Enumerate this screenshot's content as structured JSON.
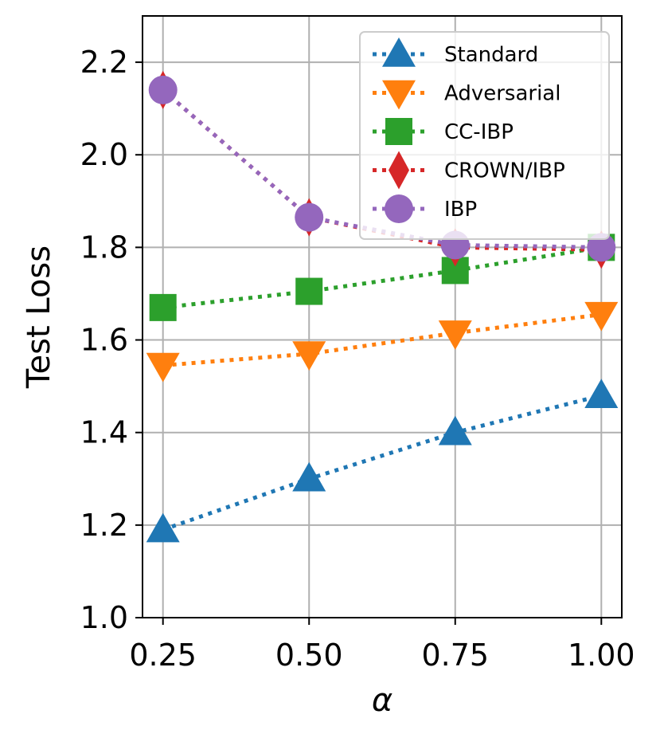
{
  "chart_data": {
    "type": "line",
    "title": "",
    "xlabel": "α",
    "ylabel": "Test Loss",
    "x": [
      0.25,
      0.5,
      0.75,
      1.0
    ],
    "xticks": [
      "0.25",
      "0.50",
      "0.75",
      "1.00"
    ],
    "yticks": [
      "1.0",
      "1.2",
      "1.4",
      "1.6",
      "1.8",
      "2.0",
      "2.2"
    ],
    "xlim": [
      0.215,
      1.035
    ],
    "ylim": [
      1.0,
      2.3
    ],
    "grid": true,
    "legend_position": "top-right",
    "series": [
      {
        "name": "Standard",
        "marker": "triangle-up",
        "color": "#1f77b4",
        "values": [
          1.19,
          1.3,
          1.4,
          1.48
        ]
      },
      {
        "name": "Adversarial",
        "marker": "triangle-down",
        "color": "#ff7f0e",
        "values": [
          1.545,
          1.57,
          1.615,
          1.655
        ]
      },
      {
        "name": "CC-IBP",
        "marker": "square",
        "color": "#2ca02c",
        "values": [
          1.67,
          1.705,
          1.75,
          1.8
        ]
      },
      {
        "name": "CROWN/IBP",
        "marker": "diamond",
        "color": "#d62728",
        "values": [
          2.14,
          1.865,
          1.8,
          1.795
        ]
      },
      {
        "name": "IBP",
        "marker": "circle",
        "color": "#9467bd",
        "values": [
          2.14,
          1.865,
          1.805,
          1.8
        ]
      }
    ]
  }
}
